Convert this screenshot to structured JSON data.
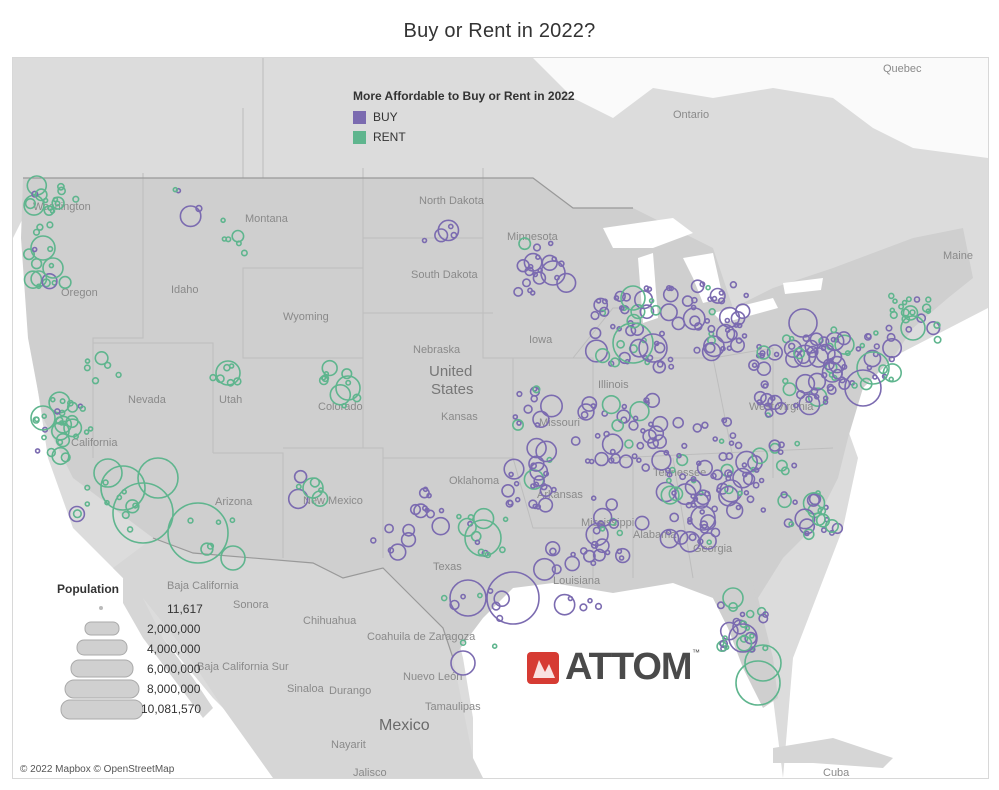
{
  "title": "Buy or Rent in 2022?",
  "legend": {
    "title": "More Affordable to Buy or Rent in 2022",
    "items": [
      {
        "label": "BUY",
        "color": "#7b6bb0"
      },
      {
        "label": "RENT",
        "color": "#5fb58e"
      }
    ]
  },
  "population_legend": {
    "title": "Population",
    "values": [
      "11,617",
      "2,000,000",
      "4,000,000",
      "6,000,000",
      "8,000,000",
      "10,081,570"
    ]
  },
  "map_labels": {
    "us_center": [
      "United",
      "States"
    ],
    "mexico": "Mexico",
    "ontario": "Ontario",
    "quebec": "Quebec",
    "cuba": "Cuba",
    "states": [
      "Washington",
      "Montana",
      "North Dakota",
      "Minnesota",
      "Idaho",
      "Oregon",
      "South Dakota",
      "Wyoming",
      "Nebraska",
      "Nevada",
      "Utah",
      "Colorado",
      "Kansas",
      "Missouri",
      "Illinois",
      "Iowa",
      "California",
      "Arizona",
      "New Mexico",
      "Oklahoma",
      "Arkansas",
      "Texas",
      "Louisiana",
      "Mississippi",
      "Alabama",
      "Georgia",
      "Tennessee",
      "West Virginia",
      "Maine"
    ],
    "mexico_states": [
      "Baja California",
      "Sonora",
      "Chihuahua",
      "Coahuila de Zaragoza",
      "Baja California Sur",
      "Sinaloa",
      "Durango",
      "Nuevo León",
      "Tamaulipas",
      "Nayarit",
      "Jalisco"
    ]
  },
  "brand": {
    "name": "ATTOM",
    "tm": "™"
  },
  "credit": "© 2022 Mapbox © OpenStreetMap"
}
